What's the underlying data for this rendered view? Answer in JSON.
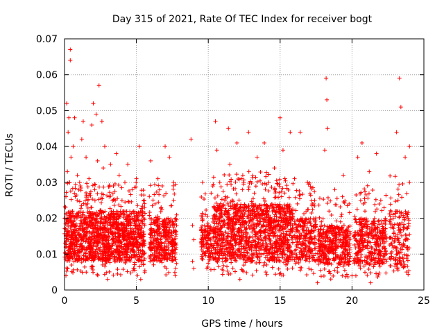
{
  "chart_data": {
    "type": "scatter",
    "title": "Day 315 of 2021, Rate Of TEC Index for receiver bogt",
    "xlabel": "GPS time / hours",
    "ylabel": "ROTI / TECUs",
    "xlim": [
      0,
      25
    ],
    "ylim": [
      0,
      0.07
    ],
    "xticks": [
      0,
      5,
      10,
      15,
      20,
      25
    ],
    "xtick_labels": [
      "0",
      "5",
      "10",
      "15",
      "20",
      "25"
    ],
    "yticks": [
      0,
      0.01,
      0.02,
      0.03,
      0.04,
      0.05,
      0.06,
      0.07
    ],
    "ytick_labels": [
      "0",
      "0.01",
      "0.02",
      "0.03",
      "0.04",
      "0.05",
      "0.06",
      "0.07"
    ],
    "grid": true,
    "marker": "plus",
    "colors": {
      "points": "#ff0000",
      "grid": "#a0a0a0",
      "axes": "#000000"
    },
    "series": [
      {
        "name": "ROTI",
        "points": [
          [
            0.1,
            0.026
          ],
          [
            0.1,
            0.004
          ],
          [
            0.15,
            0.052
          ],
          [
            0.2,
            0.033
          ],
          [
            0.25,
            0.044
          ],
          [
            0.3,
            0.048
          ],
          [
            0.3,
            0.015
          ],
          [
            0.35,
            0.03
          ],
          [
            0.4,
            0.067
          ],
          [
            0.4,
            0.064
          ],
          [
            0.45,
            0.037
          ],
          [
            0.5,
            0.012
          ],
          [
            0.55,
            0.022
          ],
          [
            0.6,
            0.04
          ],
          [
            0.7,
            0.048
          ],
          [
            0.75,
            0.026
          ],
          [
            0.8,
            0.018
          ],
          [
            0.9,
            0.032
          ],
          [
            1.0,
            0.011
          ],
          [
            1.1,
            0.029
          ],
          [
            1.2,
            0.042
          ],
          [
            1.25,
            0.021
          ],
          [
            1.3,
            0.047
          ],
          [
            1.4,
            0.015
          ],
          [
            1.5,
            0.037
          ],
          [
            1.6,
            0.024
          ],
          [
            1.7,
            0.031
          ],
          [
            1.8,
            0.012
          ],
          [
            1.9,
            0.046
          ],
          [
            2.0,
            0.052
          ],
          [
            2.1,
            0.028
          ],
          [
            2.15,
            0.018
          ],
          [
            2.2,
            0.049
          ],
          [
            2.3,
            0.036
          ],
          [
            2.35,
            0.01
          ],
          [
            2.4,
            0.057
          ],
          [
            2.5,
            0.022
          ],
          [
            2.6,
            0.047
          ],
          [
            2.7,
            0.034
          ],
          [
            2.8,
            0.04
          ],
          [
            2.9,
            0.019
          ],
          [
            3.0,
            0.003
          ],
          [
            3.1,
            0.026
          ],
          [
            3.2,
            0.035
          ],
          [
            3.3,
            0.014
          ],
          [
            3.4,
            0.029
          ],
          [
            3.5,
            0.008
          ],
          [
            3.6,
            0.038
          ],
          [
            3.7,
            0.021
          ],
          [
            3.8,
            0.032
          ],
          [
            3.9,
            0.012
          ],
          [
            4.0,
            0.025
          ],
          [
            4.1,
            0.016
          ],
          [
            4.2,
            0.03
          ],
          [
            4.3,
            0.009
          ],
          [
            4.4,
            0.035
          ],
          [
            4.5,
            0.02
          ],
          [
            4.6,
            0.013
          ],
          [
            4.7,
            0.028
          ],
          [
            4.8,
            0.006
          ],
          [
            4.9,
            0.018
          ],
          [
            5.0,
            0.031
          ],
          [
            5.1,
            0.012
          ],
          [
            5.2,
            0.04
          ],
          [
            5.3,
            0.003
          ],
          [
            5.4,
            0.022
          ],
          [
            5.5,
            0.015
          ],
          [
            6.0,
            0.036
          ],
          [
            6.2,
            0.007
          ],
          [
            6.3,
            0.024
          ],
          [
            6.5,
            0.031
          ],
          [
            6.6,
            0.013
          ],
          [
            6.8,
            0.029
          ],
          [
            7.0,
            0.04
          ],
          [
            7.1,
            0.006
          ],
          [
            7.2,
            0.02
          ],
          [
            7.3,
            0.037
          ],
          [
            7.5,
            0.011
          ],
          [
            7.6,
            0.025
          ],
          [
            7.7,
            0.004
          ],
          [
            8.8,
            0.042
          ],
          [
            8.9,
            0.018
          ],
          [
            8.9,
            0.008
          ],
          [
            9.0,
            0.014
          ],
          [
            9.0,
            0.006
          ],
          [
            9.6,
            0.03
          ],
          [
            9.7,
            0.012
          ],
          [
            9.8,
            0.021
          ],
          [
            9.9,
            0.006
          ],
          [
            10.0,
            0.016
          ],
          [
            10.2,
            0.027
          ],
          [
            10.4,
            0.009
          ],
          [
            10.5,
            0.047
          ],
          [
            10.6,
            0.039
          ],
          [
            10.7,
            0.02
          ],
          [
            10.8,
            0.03
          ],
          [
            11.0,
            0.014
          ],
          [
            11.2,
            0.026
          ],
          [
            11.4,
            0.045
          ],
          [
            11.5,
            0.035
          ],
          [
            11.6,
            0.01
          ],
          [
            11.8,
            0.023
          ],
          [
            12.0,
            0.041
          ],
          [
            12.1,
            0.016
          ],
          [
            12.2,
            0.003
          ],
          [
            12.4,
            0.032
          ],
          [
            12.6,
            0.019
          ],
          [
            12.8,
            0.044
          ],
          [
            13.0,
            0.008
          ],
          [
            13.2,
            0.027
          ],
          [
            13.4,
            0.037
          ],
          [
            13.5,
            0.014
          ],
          [
            13.7,
            0.022
          ],
          [
            13.9,
            0.041
          ],
          [
            14.0,
            0.005
          ],
          [
            14.2,
            0.03
          ],
          [
            14.4,
            0.018
          ],
          [
            14.6,
            0.034
          ],
          [
            14.8,
            0.011
          ],
          [
            15.0,
            0.048
          ],
          [
            15.1,
            0.026
          ],
          [
            15.2,
            0.039
          ],
          [
            15.4,
            0.007
          ],
          [
            15.5,
            0.02
          ],
          [
            15.7,
            0.044
          ],
          [
            15.9,
            0.015
          ],
          [
            16.0,
            0.031
          ],
          [
            16.2,
            0.024
          ],
          [
            16.4,
            0.044
          ],
          [
            16.5,
            0.01
          ],
          [
            16.7,
            0.019
          ],
          [
            16.9,
            0.03
          ],
          [
            17.0,
            0.006
          ],
          [
            17.2,
            0.014
          ],
          [
            17.4,
            0.025
          ],
          [
            17.6,
            0.002
          ],
          [
            17.8,
            0.017
          ],
          [
            18.0,
            0.01
          ],
          [
            18.1,
            0.039
          ],
          [
            18.2,
            0.059
          ],
          [
            18.25,
            0.053
          ],
          [
            18.3,
            0.045
          ],
          [
            18.4,
            0.022
          ],
          [
            18.6,
            0.013
          ],
          [
            18.8,
            0.028
          ],
          [
            19.0,
            0.005
          ],
          [
            19.2,
            0.019
          ],
          [
            19.4,
            0.032
          ],
          [
            19.6,
            0.011
          ],
          [
            19.8,
            0.024
          ],
          [
            20.0,
            0.004
          ],
          [
            20.2,
            0.016
          ],
          [
            20.4,
            0.037
          ],
          [
            20.5,
            0.008
          ],
          [
            20.7,
            0.041
          ],
          [
            20.9,
            0.022
          ],
          [
            21.0,
            0.012
          ],
          [
            21.2,
            0.033
          ],
          [
            21.3,
            0.002
          ],
          [
            21.5,
            0.019
          ],
          [
            21.7,
            0.038
          ],
          [
            21.9,
            0.01
          ],
          [
            22.0,
            0.025
          ],
          [
            22.2,
            0.016
          ],
          [
            22.4,
            0.008
          ],
          [
            23.0,
            0.015
          ],
          [
            23.1,
            0.044
          ],
          [
            23.2,
            0.025
          ],
          [
            23.3,
            0.059
          ],
          [
            23.4,
            0.051
          ],
          [
            23.5,
            0.012
          ],
          [
            23.7,
            0.037
          ],
          [
            23.8,
            0.005
          ],
          [
            23.9,
            0.02
          ],
          [
            24.0,
            0.04
          ],
          [
            24.0,
            0.03
          ]
        ]
      }
    ],
    "dense_clusters": [
      {
        "x": [
          0.0,
          5.6
        ],
        "y": [
          0.004,
          0.03
        ],
        "core": [
          0.008,
          0.022
        ],
        "count": 1400
      },
      {
        "x": [
          5.9,
          7.8
        ],
        "y": [
          0.004,
          0.03
        ],
        "core": [
          0.008,
          0.02
        ],
        "count": 360
      },
      {
        "x": [
          9.5,
          10.3
        ],
        "y": [
          0.005,
          0.028
        ],
        "core": [
          0.008,
          0.018
        ],
        "count": 120
      },
      {
        "x": [
          10.3,
          15.9
        ],
        "y": [
          0.004,
          0.033
        ],
        "core": [
          0.008,
          0.024
        ],
        "count": 1300
      },
      {
        "x": [
          16.0,
          17.5
        ],
        "y": [
          0.004,
          0.03
        ],
        "core": [
          0.008,
          0.02
        ],
        "count": 250
      },
      {
        "x": [
          17.6,
          19.9
        ],
        "y": [
          0.003,
          0.026
        ],
        "core": [
          0.007,
          0.018
        ],
        "count": 420
      },
      {
        "x": [
          20.1,
          22.4
        ],
        "y": [
          0.003,
          0.03
        ],
        "core": [
          0.007,
          0.02
        ],
        "count": 380
      },
      {
        "x": [
          22.6,
          24.0
        ],
        "y": [
          0.004,
          0.033
        ],
        "core": [
          0.006,
          0.022
        ],
        "count": 170
      }
    ]
  }
}
